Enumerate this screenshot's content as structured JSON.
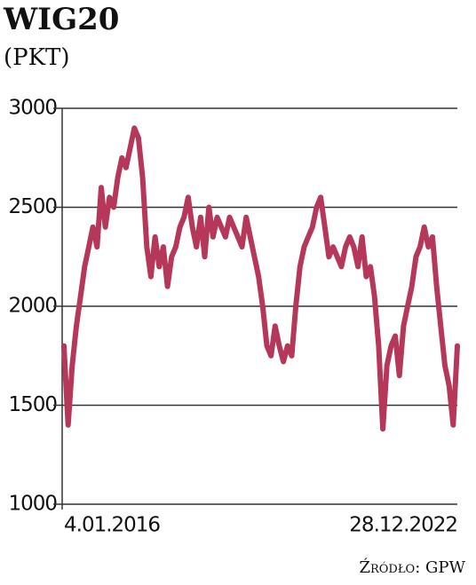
{
  "chart_data": {
    "type": "line",
    "title": "WIG20",
    "subtitle": "(PKT)",
    "source": "Źródło: GPW",
    "categories": [
      "4.01.2016",
      null,
      null,
      null,
      null,
      null,
      null,
      null,
      null,
      null,
      null,
      null,
      null,
      null,
      null,
      null,
      null,
      null,
      null,
      null,
      null,
      null,
      null,
      null,
      null,
      null,
      null,
      null,
      null,
      null,
      null,
      null,
      null,
      null,
      null,
      null,
      null,
      null,
      null,
      null,
      null,
      null,
      null,
      null,
      null,
      null,
      null,
      null,
      null,
      null,
      null,
      null,
      null,
      null,
      null,
      null,
      null,
      null,
      null,
      null,
      null,
      null,
      null,
      null,
      null,
      null,
      null,
      null,
      null,
      null,
      null,
      null,
      null,
      null,
      null,
      null,
      null,
      null,
      null,
      null,
      null,
      null,
      null,
      null,
      null,
      null,
      null,
      null,
      null,
      null,
      null,
      null,
      null,
      null,
      null,
      "28.12.2022"
    ],
    "series": [
      {
        "name": "WIG20",
        "color": "#b5385a",
        "values": [
          1800,
          1400,
          1700,
          1900,
          2050,
          2200,
          2300,
          2400,
          2300,
          2600,
          2400,
          2550,
          2500,
          2650,
          2750,
          2700,
          2800,
          2900,
          2850,
          2650,
          2300,
          2150,
          2350,
          2200,
          2300,
          2100,
          2250,
          2300,
          2400,
          2450,
          2550,
          2400,
          2300,
          2450,
          2250,
          2500,
          2350,
          2450,
          2400,
          2350,
          2450,
          2400,
          2350,
          2300,
          2450,
          2350,
          2250,
          2150,
          2000,
          1800,
          1750,
          1900,
          1800,
          1720,
          1800,
          1750,
          2000,
          2200,
          2300,
          2350,
          2400,
          2500,
          2550,
          2400,
          2250,
          2300,
          2250,
          2200,
          2300,
          2350,
          2300,
          2200,
          2350,
          2150,
          2200,
          2050,
          1800,
          1380,
          1700,
          1800,
          1850,
          1650,
          1900,
          2000,
          2100,
          2250,
          2300,
          2400,
          2300,
          2350,
          2100,
          1900,
          1700,
          1600,
          1400,
          1800
        ]
      }
    ],
    "ylim": [
      1000,
      3000
    ],
    "yticks": [
      1000,
      1500,
      2000,
      2500,
      3000
    ],
    "grid": true
  }
}
